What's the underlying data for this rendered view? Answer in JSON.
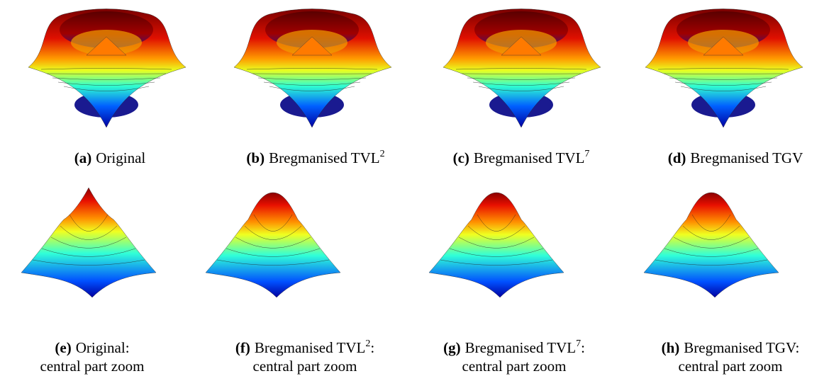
{
  "figures": [
    {
      "label": "(a)",
      "caption": "Original"
    },
    {
      "label": "(b)",
      "caption": "Bregmanised TVL",
      "superscript": "2"
    },
    {
      "label": "(c)",
      "caption": "Bregmanised TVL",
      "superscript": "7"
    },
    {
      "label": "(d)",
      "caption": "Bregmanised TGV"
    },
    {
      "label": "(e)",
      "caption": "Original:",
      "caption_line2": "central part zoom"
    },
    {
      "label": "(f)",
      "caption": "Bregmanised TVL",
      "superscript": "2",
      "suffix": ":",
      "caption_line2": "central part zoom"
    },
    {
      "label": "(g)",
      "caption": "Bregmanised TVL",
      "superscript": "7",
      "suffix": ":",
      "caption_line2": "central part zoom"
    },
    {
      "label": "(h)",
      "caption": "Bregmanised TGV:",
      "caption_line2": "central part zoom"
    }
  ]
}
